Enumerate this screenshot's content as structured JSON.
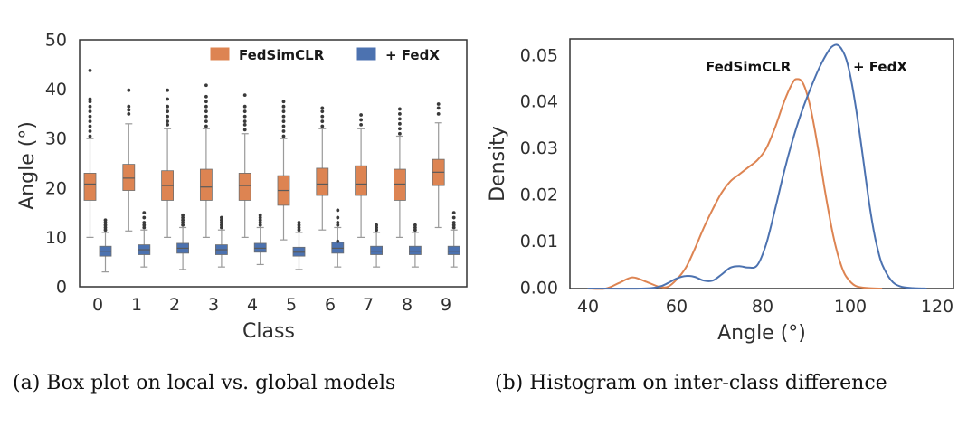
{
  "colors": {
    "fedsimclr": "#dd8452",
    "fedx": "#4c72b0",
    "whisker": "#9a9a9a",
    "outlier": "#3a3a3a",
    "frame": "#333333"
  },
  "chart_data": [
    {
      "type": "box",
      "title": "",
      "xlabel": "Class",
      "ylabel": "Angle (°)",
      "ylim": [
        0,
        50
      ],
      "yticks": [
        "0",
        "10",
        "20",
        "30",
        "40",
        "50"
      ],
      "categories": [
        "0",
        "1",
        "2",
        "3",
        "4",
        "5",
        "6",
        "7",
        "8",
        "9"
      ],
      "legend": {
        "position": "top-right",
        "entries": [
          "FedSimCLR",
          "+ FedX"
        ]
      },
      "series": [
        {
          "name": "FedSimCLR",
          "color_key": "fedsimclr",
          "boxes": [
            {
              "whislo": 10.0,
              "q1": 17.5,
              "med": 20.8,
              "q3": 23.0,
              "whishi": 30.0,
              "fliers": [
                30.5,
                31.5,
                32.5,
                33.5,
                34.5,
                35.5,
                36.5,
                37.5,
                38.0,
                43.8
              ]
            },
            {
              "whislo": 11.3,
              "q1": 19.5,
              "med": 22.0,
              "q3": 24.8,
              "whishi": 33.0,
              "fliers": [
                35.0,
                35.8,
                36.5,
                39.8
              ]
            },
            {
              "whislo": 10.0,
              "q1": 17.5,
              "med": 20.5,
              "q3": 23.5,
              "whishi": 32.0,
              "fliers": [
                32.8,
                33.5,
                34.5,
                35.5,
                36.5,
                38.0,
                39.8
              ]
            },
            {
              "whislo": 10.0,
              "q1": 17.5,
              "med": 20.2,
              "q3": 23.8,
              "whishi": 32.0,
              "fliers": [
                32.5,
                33.5,
                34.5,
                35.5,
                36.5,
                37.5,
                38.5,
                40.8
              ]
            },
            {
              "whislo": 10.0,
              "q1": 17.5,
              "med": 20.5,
              "q3": 23.0,
              "whishi": 31.0,
              "fliers": [
                31.8,
                32.8,
                33.5,
                34.5,
                35.5,
                36.5,
                38.8
              ]
            },
            {
              "whislo": 9.5,
              "q1": 16.5,
              "med": 19.5,
              "q3": 22.5,
              "whishi": 30.0,
              "fliers": [
                30.5,
                31.5,
                32.5,
                33.5,
                34.5,
                35.5,
                36.5,
                37.5
              ]
            },
            {
              "whislo": 11.5,
              "q1": 18.5,
              "med": 20.8,
              "q3": 24.0,
              "whishi": 32.0,
              "fliers": [
                32.5,
                33.5,
                34.5,
                35.5,
                36.2
              ]
            },
            {
              "whislo": 10.0,
              "q1": 18.5,
              "med": 20.8,
              "q3": 24.5,
              "whishi": 32.0,
              "fliers": [
                32.8,
                33.8,
                34.8
              ]
            },
            {
              "whislo": 10.0,
              "q1": 17.5,
              "med": 20.8,
              "q3": 23.8,
              "whishi": 30.5,
              "fliers": [
                31.0,
                32.0,
                33.0,
                34.0,
                35.0,
                36.0
              ]
            },
            {
              "whislo": 12.0,
              "q1": 20.5,
              "med": 23.2,
              "q3": 25.8,
              "whishi": 33.2,
              "fliers": [
                35.0,
                36.2,
                37.0
              ]
            }
          ]
        },
        {
          "name": "+ FedX",
          "color_key": "fedx",
          "boxes": [
            {
              "whislo": 3.0,
              "q1": 6.2,
              "med": 7.2,
              "q3": 8.2,
              "whishi": 11.0,
              "fliers": [
                11.5,
                12.0,
                12.5,
                13.0,
                13.5
              ]
            },
            {
              "whislo": 4.0,
              "q1": 6.5,
              "med": 7.5,
              "q3": 8.5,
              "whishi": 11.5,
              "fliers": [
                12.0,
                12.5,
                13.0,
                14.0,
                15.0
              ]
            },
            {
              "whislo": 3.5,
              "q1": 6.8,
              "med": 7.8,
              "q3": 8.8,
              "whishi": 12.0,
              "fliers": [
                12.5,
                13.0,
                13.5,
                14.0,
                14.5
              ]
            },
            {
              "whislo": 4.0,
              "q1": 6.5,
              "med": 7.5,
              "q3": 8.5,
              "whishi": 11.5,
              "fliers": [
                12.0,
                12.5,
                13.0,
                13.5,
                14.0
              ]
            },
            {
              "whislo": 4.5,
              "q1": 7.0,
              "med": 7.8,
              "q3": 8.8,
              "whishi": 12.0,
              "fliers": [
                12.5,
                13.0,
                13.5,
                14.0,
                14.5
              ]
            },
            {
              "whislo": 3.5,
              "q1": 6.2,
              "med": 7.0,
              "q3": 8.0,
              "whishi": 11.0,
              "fliers": [
                11.5,
                12.0,
                12.5,
                13.0
              ]
            },
            {
              "whislo": 4.0,
              "q1": 6.8,
              "med": 7.8,
              "q3": 9.0,
              "whishi": 12.0,
              "fliers": [
                9.2,
                12.5,
                13.0,
                14.0,
                15.5
              ]
            },
            {
              "whislo": 4.0,
              "q1": 6.5,
              "med": 7.2,
              "q3": 8.2,
              "whishi": 11.0,
              "fliers": [
                11.5,
                12.0,
                12.5
              ]
            },
            {
              "whislo": 4.0,
              "q1": 6.5,
              "med": 7.2,
              "q3": 8.2,
              "whishi": 11.0,
              "fliers": [
                11.5,
                12.0,
                12.5
              ]
            },
            {
              "whislo": 4.0,
              "q1": 6.5,
              "med": 7.2,
              "q3": 8.2,
              "whishi": 11.5,
              "fliers": [
                12.0,
                12.5,
                13.0,
                14.0,
                15.0
              ]
            }
          ]
        }
      ],
      "caption": "(a) Box plot on local vs. global models"
    },
    {
      "type": "line",
      "title": "",
      "xlabel": "Angle (°)",
      "ylabel": "Density",
      "xlim": [
        36,
        122
      ],
      "ylim": [
        0,
        0.0535
      ],
      "xticks": [
        40,
        60,
        80,
        100,
        120
      ],
      "xtick_labels": [
        "40",
        "60",
        "80",
        "100",
        "120"
      ],
      "yticks": [
        0,
        0.01,
        0.02,
        0.03,
        0.04,
        0.05
      ],
      "ytick_labels": [
        "0.00",
        "0.01",
        "0.02",
        "0.03",
        "0.04",
        "0.05"
      ],
      "annotations": [
        "FedSimCLR",
        "+ FedX"
      ],
      "series": [
        {
          "name": "FedSimCLR",
          "color_key": "fedsimclr",
          "x": [
            40,
            44,
            47,
            50,
            53,
            56,
            58,
            60,
            62,
            64,
            66,
            68,
            70,
            72,
            74,
            76,
            78,
            80,
            82,
            84,
            86,
            87,
            88,
            89,
            90,
            91,
            92,
            93,
            94,
            95,
            96,
            97,
            98,
            100,
            103,
            106
          ],
          "y": [
            0.0,
            0.0,
            0.0012,
            0.0024,
            0.0015,
            0.0004,
            0.0004,
            0.002,
            0.0045,
            0.0085,
            0.013,
            0.017,
            0.0205,
            0.023,
            0.0245,
            0.026,
            0.0275,
            0.03,
            0.0345,
            0.04,
            0.0442,
            0.0449,
            0.0444,
            0.0422,
            0.0385,
            0.0335,
            0.028,
            0.022,
            0.0165,
            0.0115,
            0.0075,
            0.0045,
            0.0025,
            0.0006,
            0.0001,
            0.0
          ]
        },
        {
          "name": "+ FedX",
          "color_key": "fedx",
          "x": [
            40,
            52,
            56,
            58,
            60,
            62,
            64,
            66,
            68,
            70,
            72,
            74,
            76,
            78,
            80,
            82,
            84,
            86,
            88,
            90,
            92,
            94,
            95,
            96,
            97,
            98,
            99,
            100,
            101,
            102,
            103,
            104,
            105,
            106,
            108,
            110,
            113,
            116
          ],
          "y": [
            0.0,
            0.0,
            0.0004,
            0.0012,
            0.0022,
            0.0027,
            0.0025,
            0.0017,
            0.0017,
            0.003,
            0.0045,
            0.0048,
            0.0045,
            0.005,
            0.0095,
            0.017,
            0.025,
            0.032,
            0.038,
            0.043,
            0.0475,
            0.051,
            0.052,
            0.0522,
            0.0512,
            0.049,
            0.045,
            0.0395,
            0.033,
            0.026,
            0.019,
            0.013,
            0.0085,
            0.0052,
            0.0018,
            0.0005,
            0.0001,
            0.0
          ]
        }
      ],
      "caption": "(b) Histogram on inter-class difference"
    }
  ]
}
